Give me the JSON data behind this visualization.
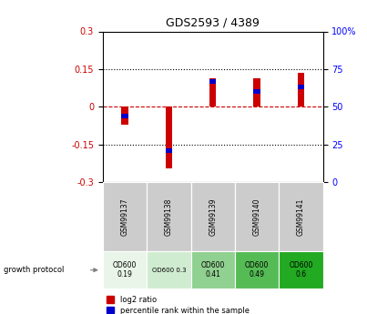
{
  "title": "GDS2593 / 4389",
  "samples": [
    "GSM99137",
    "GSM99138",
    "GSM99139",
    "GSM99140",
    "GSM99141"
  ],
  "log2_ratio": [
    -0.07,
    -0.245,
    0.115,
    0.112,
    0.135
  ],
  "percentile_rank": [
    44,
    21,
    67,
    60,
    63
  ],
  "ylim_left": [
    -0.3,
    0.3
  ],
  "ylim_right": [
    0,
    100
  ],
  "yticks_left": [
    -0.3,
    -0.15,
    0,
    0.15,
    0.3
  ],
  "yticks_right": [
    0,
    25,
    50,
    75,
    100
  ],
  "bar_width": 0.15,
  "red_color": "#cc0000",
  "blue_color": "#0000cc",
  "zero_line_color": "#cc0000",
  "protocol_labels": [
    "OD600\n0.19",
    "OD600 0.3",
    "OD600\n0.41",
    "OD600\n0.49",
    "OD600\n0.6"
  ],
  "protocol_colors": [
    "#e8f5e8",
    "#d0ecd0",
    "#90d090",
    "#55bb55",
    "#22aa22"
  ],
  "sample_bg_color": "#cccccc",
  "legend_red": "log2 ratio",
  "legend_blue": "percentile rank within the sample",
  "growth_protocol_text": "growth protocol"
}
